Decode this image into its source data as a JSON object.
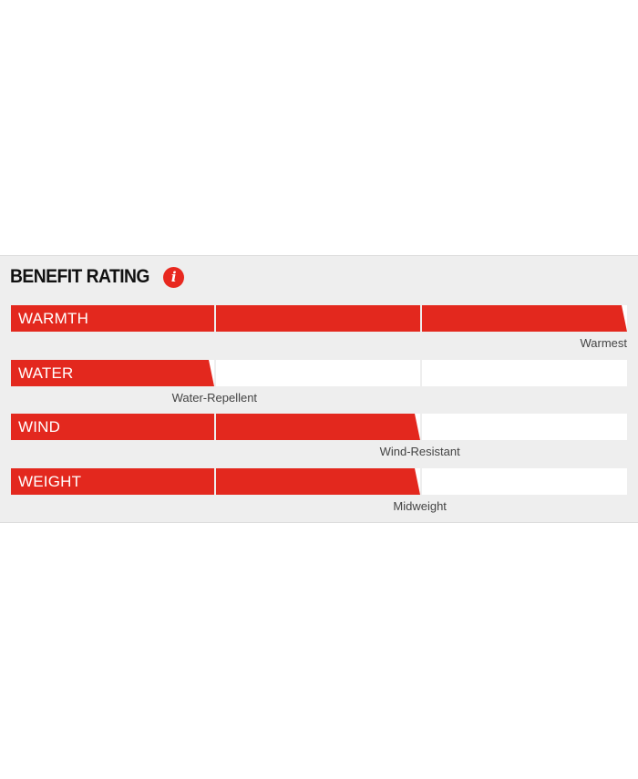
{
  "header": {
    "title": "BENEFIT RATING",
    "info_icon": "info-icon"
  },
  "accent_color": "#e3281e",
  "segments_per_bar": 3,
  "ratings": [
    {
      "key": "warmth",
      "label": "WARMTH",
      "level": 3,
      "caption": "Warmest"
    },
    {
      "key": "water",
      "label": "WATER",
      "level": 1,
      "caption": "Water-Repellent"
    },
    {
      "key": "wind",
      "label": "WIND",
      "level": 2,
      "caption": "Wind-Resistant"
    },
    {
      "key": "weight",
      "label": "WEIGHT",
      "level": 2,
      "caption": "Midweight"
    }
  ]
}
